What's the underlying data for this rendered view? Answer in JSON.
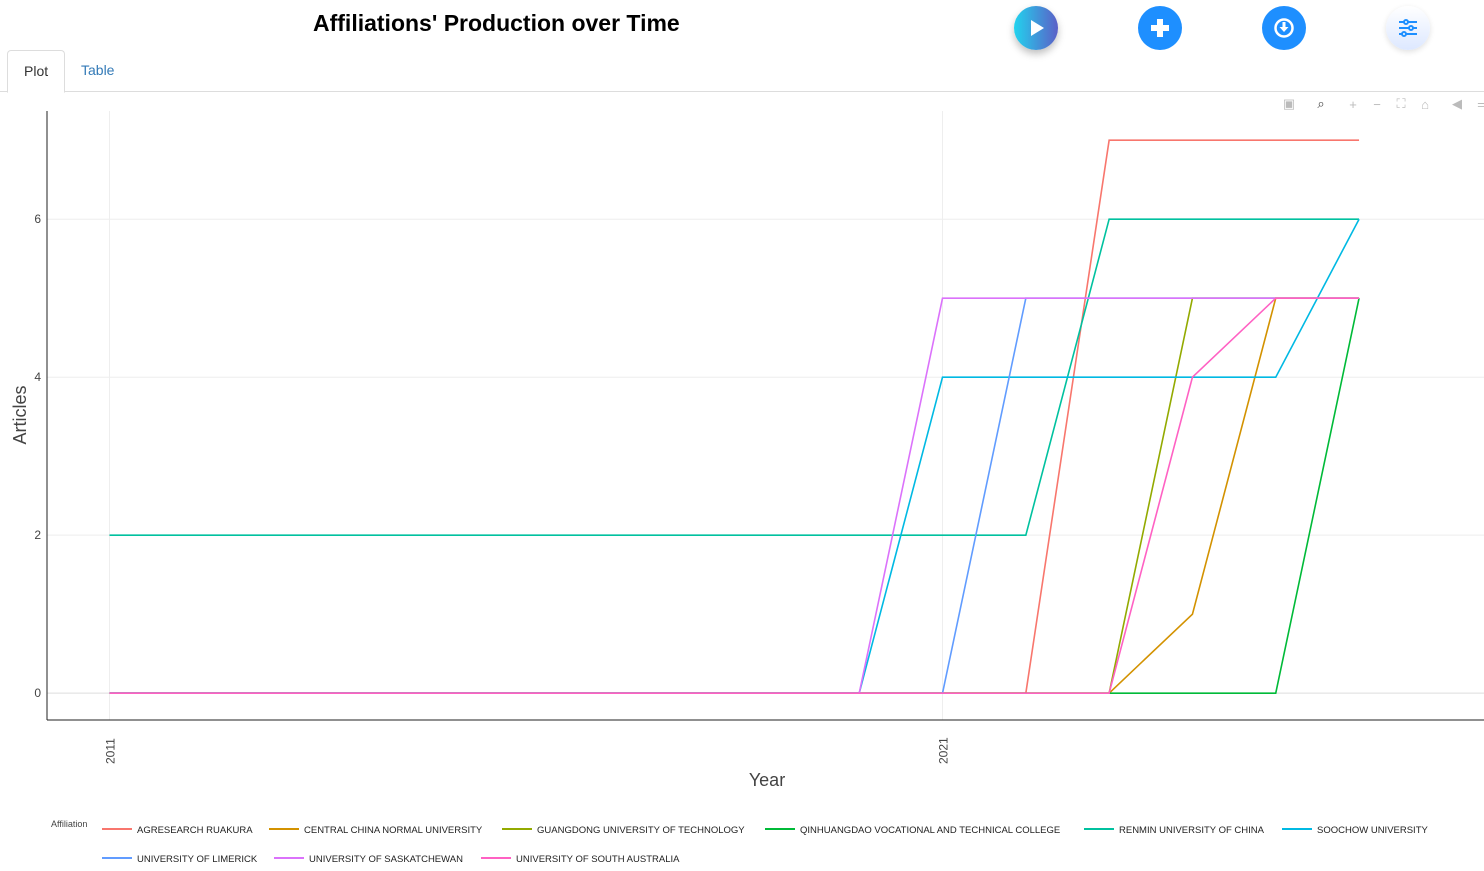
{
  "header": {
    "title": "Affiliations' Production over Time"
  },
  "tabs": [
    {
      "label": "Plot"
    },
    {
      "label": "Table"
    }
  ],
  "buttons": {
    "play": "play-icon",
    "add": "plus-icon",
    "download": "download-icon",
    "settings": "sliders-icon"
  },
  "toolbar": [
    "camera-icon",
    "zoom-icon",
    "zoom-in-icon",
    "zoom-out-icon",
    "autoscale-icon",
    "home-icon",
    "hover-closest-icon",
    "hover-compare-icon"
  ],
  "chart_data": {
    "type": "line",
    "title": "Affiliations' Production over Time",
    "xlabel": "Year",
    "ylabel": "Articles",
    "xlim": [
      2010.25,
      2027.5
    ],
    "ylim": [
      -0.34,
      7.37
    ],
    "xticks": [
      2011,
      2021
    ],
    "yticks": [
      0,
      2,
      4,
      6
    ],
    "grid": true,
    "legend_title": "Affiliation",
    "legend_placement": "bottom",
    "x": [
      2011,
      2012,
      2013,
      2014,
      2015,
      2016,
      2017,
      2018,
      2019,
      2020,
      2021,
      2022,
      2023,
      2024,
      2025,
      2026
    ],
    "series": [
      {
        "name": "AGRESEARCH RUAKURA",
        "color": "#F8766D",
        "values": [
          0,
          0,
          0,
          0,
          0,
          0,
          0,
          0,
          0,
          0,
          0,
          0,
          7,
          7,
          7,
          7
        ]
      },
      {
        "name": "CENTRAL CHINA NORMAL UNIVERSITY",
        "color": "#D39200",
        "values": [
          0,
          0,
          0,
          0,
          0,
          0,
          0,
          0,
          0,
          0,
          0,
          0,
          0,
          1,
          5,
          5
        ]
      },
      {
        "name": "GUANGDONG UNIVERSITY OF TECHNOLOGY",
        "color": "#93AA00",
        "values": [
          0,
          0,
          0,
          0,
          0,
          0,
          0,
          0,
          0,
          0,
          0,
          0,
          0,
          5,
          5,
          5
        ]
      },
      {
        "name": "QINHUANGDAO VOCATIONAL AND TECHNICAL COLLEGE",
        "color": "#00BA38",
        "values": [
          0,
          0,
          0,
          0,
          0,
          0,
          0,
          0,
          0,
          0,
          0,
          0,
          0,
          0,
          0,
          5
        ]
      },
      {
        "name": "RENMIN UNIVERSITY OF CHINA",
        "color": "#00C19F",
        "values": [
          2,
          2,
          2,
          2,
          2,
          2,
          2,
          2,
          2,
          2,
          2,
          2,
          6,
          6,
          6,
          6
        ]
      },
      {
        "name": "SOOCHOW UNIVERSITY",
        "color": "#00B9E3",
        "values": [
          0,
          0,
          0,
          0,
          0,
          0,
          0,
          0,
          0,
          0,
          4,
          4,
          4,
          4,
          4,
          6
        ]
      },
      {
        "name": "UNIVERSITY OF LIMERICK",
        "color": "#619CFF",
        "values": [
          0,
          0,
          0,
          0,
          0,
          0,
          0,
          0,
          0,
          0,
          0,
          5,
          5,
          5,
          5,
          5
        ]
      },
      {
        "name": "UNIVERSITY OF SASKATCHEWAN",
        "color": "#DB72FB",
        "values": [
          0,
          0,
          0,
          0,
          0,
          0,
          0,
          0,
          0,
          0,
          5,
          5,
          5,
          5,
          5,
          5
        ]
      },
      {
        "name": "UNIVERSITY OF SOUTH AUSTRALIA",
        "color": "#FF61C3",
        "values": [
          0,
          0,
          0,
          0,
          0,
          0,
          0,
          0,
          0,
          0,
          0,
          0,
          0,
          4,
          5,
          5
        ]
      }
    ]
  }
}
